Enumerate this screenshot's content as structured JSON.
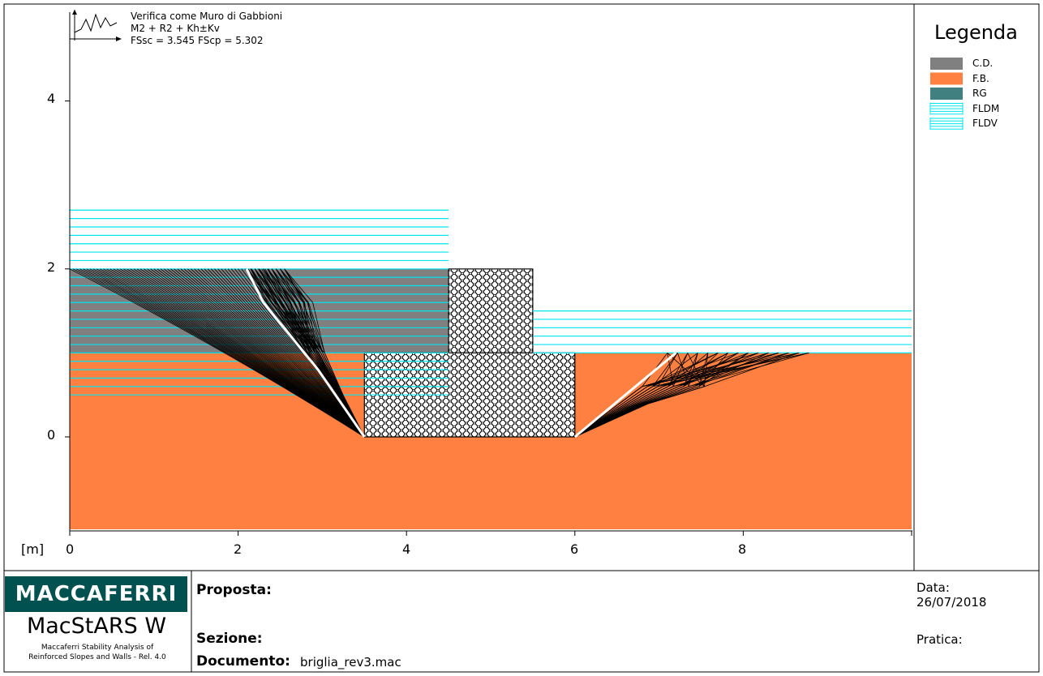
{
  "header": {
    "title": "Verifica come Muro di Gabbioni",
    "combination": "M2 + R2 + Kh±Kv",
    "factors": "FSsc = 3.545 FScp = 5.302"
  },
  "legend": {
    "title": "Legenda",
    "items": [
      {
        "label": "C.D.",
        "color": "#808080",
        "pattern": "solid"
      },
      {
        "label": "F.B.",
        "color": "#ff8040",
        "pattern": "solid"
      },
      {
        "label": "RG",
        "color": "#408080",
        "pattern": "solid"
      },
      {
        "label": "FLDM",
        "color": "#00e5ee",
        "pattern": "hlines"
      },
      {
        "label": "FLDV",
        "color": "#00e5ee",
        "pattern": "hlines"
      }
    ]
  },
  "axes": {
    "unit_label": "[m]",
    "x_ticks": [
      "0",
      "2",
      "4",
      "6",
      "8"
    ],
    "y_ticks": [
      "4",
      "2",
      "0"
    ]
  },
  "chart_data": {
    "type": "area",
    "xlabel": "[m]",
    "xlim": [
      0,
      10
    ],
    "ylim": [
      -1.1,
      5.1
    ],
    "regions": [
      {
        "name": "F.B.",
        "color": "#ff8040",
        "polygon": [
          [
            0,
            -1.1
          ],
          [
            10,
            -1.1
          ],
          [
            10,
            1
          ],
          [
            6,
            1
          ],
          [
            6,
            0
          ],
          [
            3.5,
            0
          ],
          [
            3.5,
            1
          ],
          [
            0,
            1
          ]
        ]
      },
      {
        "name": "C.D.",
        "color": "#808080",
        "polygon": [
          [
            0,
            1
          ],
          [
            4.5,
            1
          ],
          [
            4.5,
            2
          ],
          [
            0,
            2
          ]
        ]
      },
      {
        "name": "gabion-base",
        "pattern": "hexmesh",
        "polygon": [
          [
            3.5,
            0
          ],
          [
            6,
            0
          ],
          [
            6,
            1
          ],
          [
            3.5,
            1
          ]
        ]
      },
      {
        "name": "gabion-top",
        "pattern": "hexmesh",
        "polygon": [
          [
            4.5,
            1
          ],
          [
            5.5,
            1
          ],
          [
            5.5,
            2
          ],
          [
            4.5,
            2
          ]
        ]
      }
    ],
    "water_levels": [
      {
        "name": "FLDM",
        "x": [
          0,
          4.5
        ],
        "y_from": 0.5,
        "y_to": 2.7
      },
      {
        "name": "FLDV",
        "x": [
          5.5,
          10
        ],
        "y_from": 1.0,
        "y_to": 1.5
      }
    ],
    "critical_surfaces": [
      {
        "side": "upstream",
        "points": [
          [
            2.1,
            2
          ],
          [
            2.3,
            1.6
          ],
          [
            2.95,
            0.8
          ],
          [
            3.5,
            0
          ]
        ]
      },
      {
        "side": "downstream",
        "points": [
          [
            6,
            0
          ],
          [
            7.2,
            1
          ]
        ]
      }
    ]
  },
  "footer": {
    "brand": "MACCAFERRI",
    "product": "MacStARS W",
    "product_sub_1": "Maccaferri Stability Analysis of",
    "product_sub_2": "Reinforced Slopes and Walls - Rel. 4.0",
    "proposta_label": "Proposta:",
    "sezione_label": "Sezione:",
    "documento_label": "Documento:",
    "documento_value": "briglia_rev3.mac",
    "data_label": "Data:",
    "data_value": "26/07/2018",
    "pratica_label": "Pratica:"
  }
}
